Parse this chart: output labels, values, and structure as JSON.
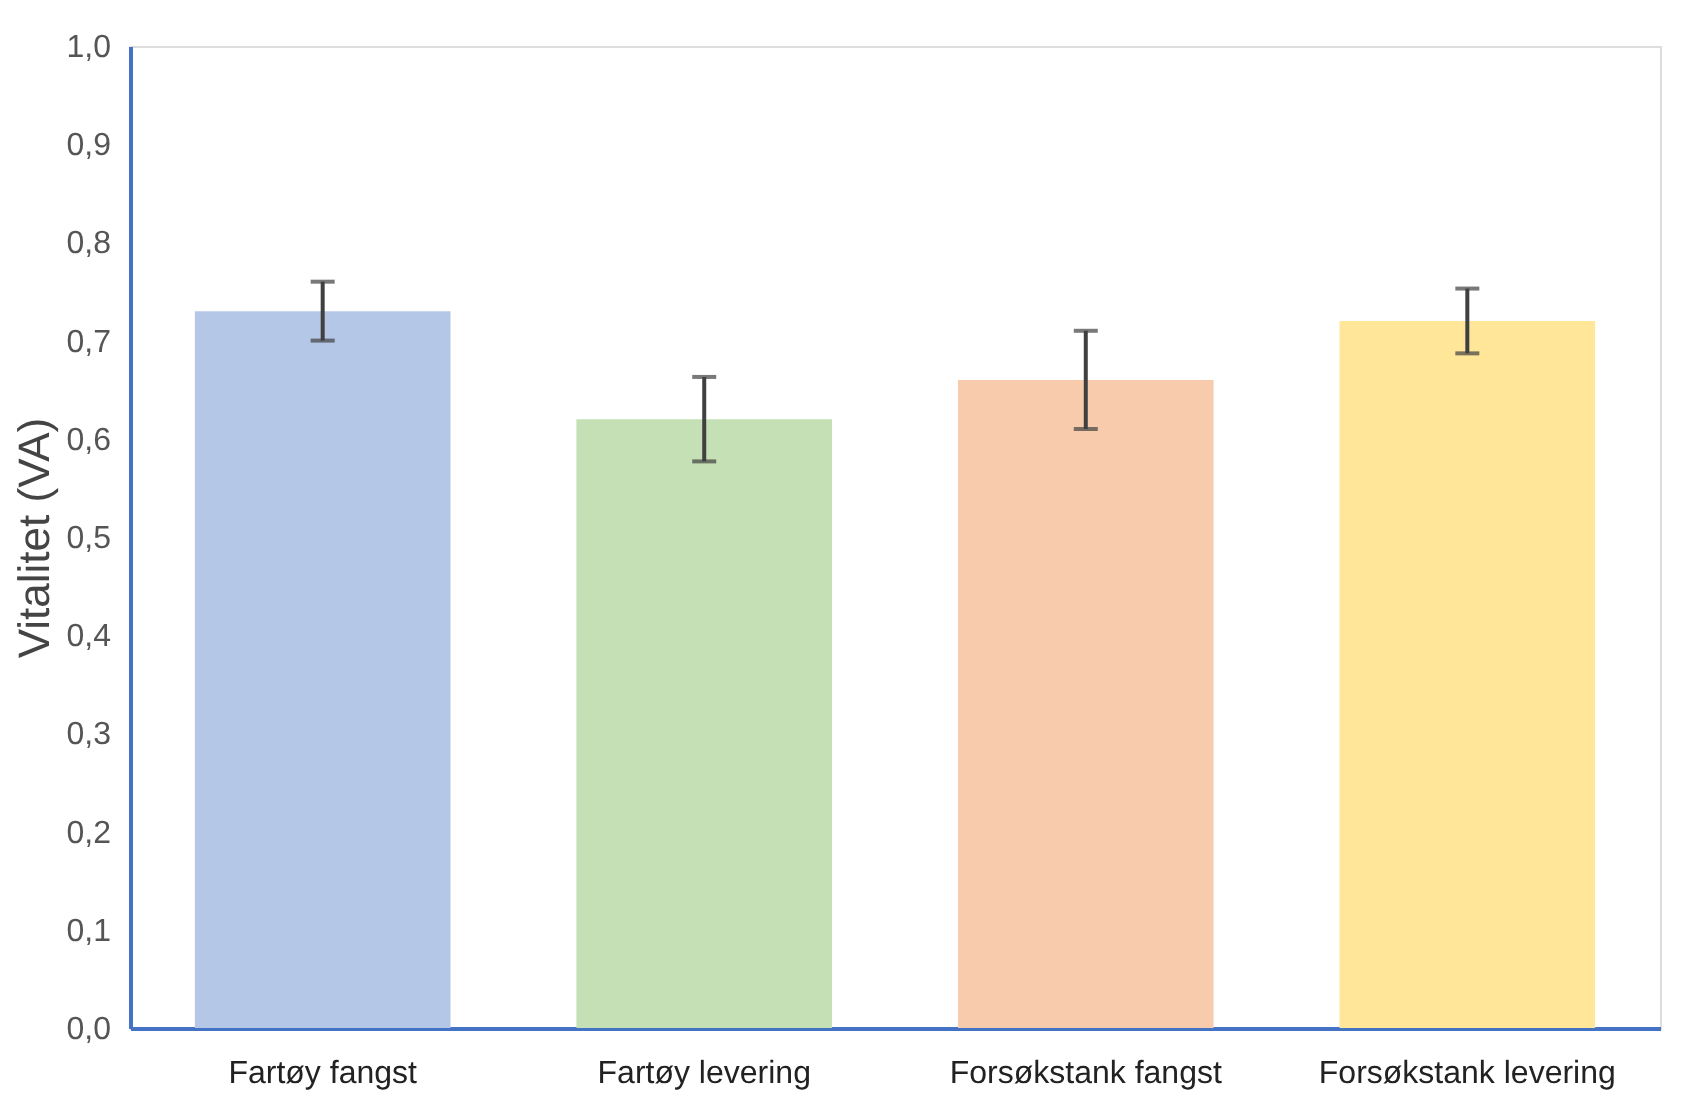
{
  "chart_data": {
    "type": "bar",
    "ylabel": "Vitalitet (VA)",
    "categories": [
      "Fartøy fangst",
      "Fartøy levering",
      "Forsøkstank fangst",
      "Forsøkstank levering"
    ],
    "values": [
      0.73,
      0.62,
      0.66,
      0.72
    ],
    "errors": [
      0.03,
      0.043,
      0.05,
      0.033
    ],
    "colors": [
      "#b4c7e7",
      "#c5e0b4",
      "#f8cbad",
      "#ffe699"
    ],
    "ylim": [
      0,
      1
    ],
    "yticks": [
      {
        "value": 0,
        "label": "0,0"
      },
      {
        "value": 0.1,
        "label": "0,1"
      },
      {
        "value": 0.2,
        "label": "0,2"
      },
      {
        "value": 0.3,
        "label": "0,3"
      },
      {
        "value": 0.4,
        "label": "0,4"
      },
      {
        "value": 0.5,
        "label": "0,5"
      },
      {
        "value": 0.6,
        "label": "0,6"
      },
      {
        "value": 0.7,
        "label": "0,7"
      },
      {
        "value": 0.8,
        "label": "0,8"
      },
      {
        "value": 0.9,
        "label": "0,9"
      },
      {
        "value": 1,
        "label": "1,0"
      }
    ],
    "grid": false
  }
}
